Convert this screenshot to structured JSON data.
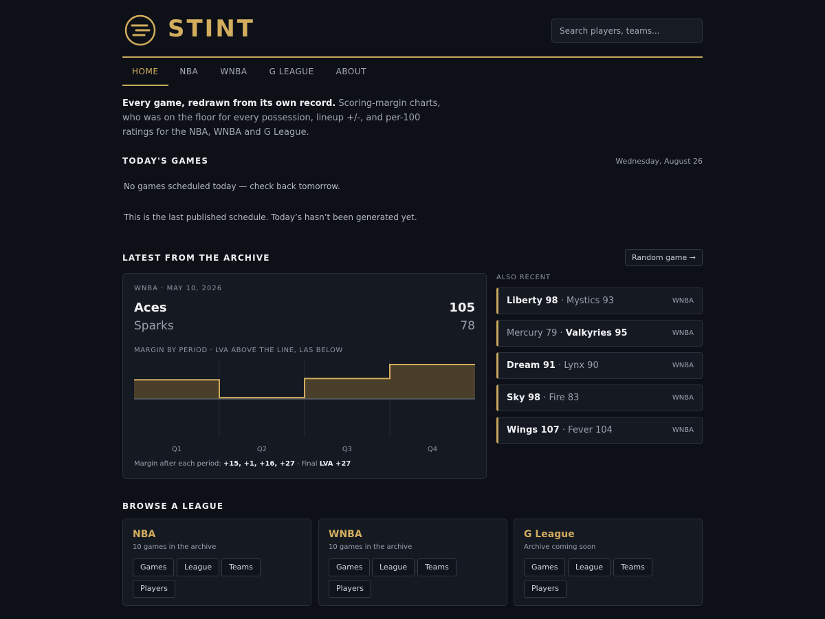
{
  "header": {
    "logo_text": "STINT",
    "search_placeholder": "Search players, teams..."
  },
  "nav": {
    "items": [
      {
        "label": "HOME",
        "active": true
      },
      {
        "label": "NBA"
      },
      {
        "label": "WNBA"
      },
      {
        "label": "G LEAGUE"
      },
      {
        "label": "ABOUT"
      }
    ]
  },
  "intro": {
    "lead": "Every game, redrawn from its own record.",
    "rest": " Scoring-margin charts, who was on the floor for every possession, lineup +/-, and per-100 ratings for the NBA, WNBA and G League."
  },
  "todays_games": {
    "title": "TODAY'S GAMES",
    "date": "Wednesday, August 26",
    "empty_note": "No games scheduled today — check back tomorrow.",
    "schedule_note": "This is the last published schedule. Today’s hasn’t been generated yet."
  },
  "archive": {
    "title": "LATEST FROM THE ARCHIVE",
    "random_button": "Random game →",
    "featured": {
      "meta": "WNBA · MAY 10, 2026",
      "team1": "Aces",
      "score1": "105",
      "team2": "Sparks",
      "score2": "78",
      "caption": "MARGIN BY PERIOD · LVA ABOVE THE LINE, LAS BELOW",
      "summary_prefix": "Margin after each period: ",
      "summary_values": "+15, +1, +16, +27",
      "summary_mid": " · Final ",
      "summary_final": "LVA +27"
    },
    "also_recent_label": "ALSO RECENT",
    "recent": [
      {
        "winner": "Liberty 98",
        "sep": " · ",
        "loser": "Mystics 93",
        "winner_first": true,
        "league": "WNBA"
      },
      {
        "loser": "Mercury 79",
        "sep": " · ",
        "winner": "Valkyries 95",
        "winner_first": false,
        "league": "WNBA"
      },
      {
        "winner": "Dream 91",
        "sep": " · ",
        "loser": "Lynx 90",
        "winner_first": true,
        "league": "WNBA"
      },
      {
        "winner": "Sky 98",
        "sep": " · ",
        "loser": "Fire 83",
        "winner_first": true,
        "league": "WNBA"
      },
      {
        "winner": "Wings 107",
        "sep": " · ",
        "loser": "Fever 104",
        "winner_first": true,
        "league": "WNBA"
      }
    ]
  },
  "chart_data": {
    "type": "area",
    "categories": [
      "Q1",
      "Q2",
      "Q3",
      "Q4"
    ],
    "values": [
      15,
      1,
      16,
      27
    ],
    "ylim": [
      -30,
      30
    ],
    "baseline": 0,
    "step": true,
    "colors": {
      "line": "#d2ad5e",
      "fill": "#4a3f2a",
      "baseline": "#5b626d",
      "grid": "#262c36"
    }
  },
  "browse": {
    "title": "BROWSE A LEAGUE",
    "leagues": [
      {
        "name": "NBA",
        "sub": "10 games in the archive",
        "links": [
          "Games",
          "League",
          "Teams",
          "Players"
        ]
      },
      {
        "name": "WNBA",
        "sub": "10 games in the archive",
        "links": [
          "Games",
          "League",
          "Teams",
          "Players"
        ]
      },
      {
        "name": "G League",
        "sub": "Archive coming soon",
        "links": [
          "Games",
          "League",
          "Teams",
          "Players"
        ]
      }
    ]
  },
  "colors": {
    "accent": "#c9a85c",
    "background": "#0d1016",
    "card": "#141922"
  }
}
